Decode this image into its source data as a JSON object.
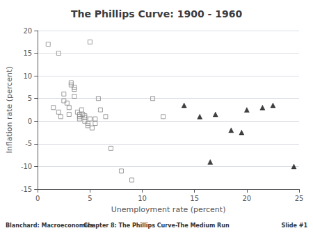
{
  "chart_data": {
    "type": "scatter",
    "title": "The Phillips Curve: 1900 - 1960",
    "xlabel": "Unemployment rate (percent)",
    "ylabel": "Inflation rate (percent)",
    "xlim": [
      0,
      25
    ],
    "ylim": [
      -15,
      20
    ],
    "xticks": [
      0,
      5,
      10,
      15,
      20,
      25
    ],
    "yticks": [
      -15,
      -10,
      -5,
      0,
      5,
      10,
      15,
      20
    ],
    "grid": "y",
    "annotations": [
      "Blanchard: Macroeconomics",
      "Chapter 8: The Phillips Curve-The Medium Run",
      "Slide #1"
    ],
    "series": [
      {
        "marker": "open_square",
        "color": "#888888",
        "x": [
          1.0,
          1.5,
          2.0,
          2.0,
          2.2,
          2.5,
          2.5,
          2.8,
          3.0,
          3.0,
          3.2,
          3.2,
          3.5,
          3.5,
          3.5,
          3.8,
          4.0,
          4.0,
          4.0,
          4.2,
          4.3,
          4.5,
          4.5,
          4.5,
          4.8,
          4.8,
          5.0,
          5.0,
          5.2,
          5.5,
          5.5,
          5.8,
          6.0,
          6.5,
          7.0,
          8.0,
          9.0,
          11.0,
          12.0
        ],
        "values": [
          17.0,
          3.0,
          15.0,
          2.0,
          1.0,
          6.0,
          4.5,
          4.0,
          3.0,
          1.5,
          8.0,
          8.5,
          7.5,
          7.0,
          5.5,
          2.0,
          1.5,
          1.0,
          0.5,
          2.5,
          1.5,
          1.2,
          0.8,
          0.0,
          -0.5,
          -1.0,
          0.5,
          17.5,
          -1.5,
          0.5,
          -0.5,
          5.0,
          2.5,
          1.0,
          -6.0,
          -11.0,
          -13.0,
          5.0,
          1.0
        ]
      },
      {
        "marker": "triangle",
        "color": "#111111",
        "x": [
          14.0,
          15.5,
          16.5,
          17.0,
          18.5,
          19.5,
          20.0,
          21.5,
          22.5,
          24.5
        ],
        "values": [
          3.5,
          1.0,
          -9.0,
          1.5,
          -2.0,
          -2.5,
          2.5,
          3.0,
          3.5,
          -10.0
        ]
      }
    ]
  }
}
